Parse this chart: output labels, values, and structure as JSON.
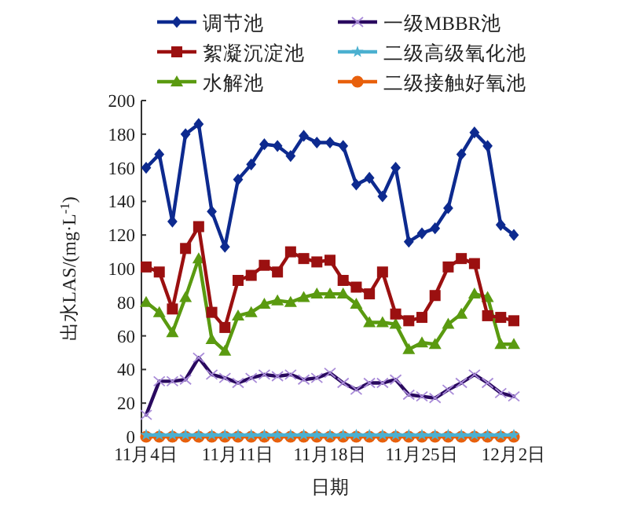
{
  "chart_data": {
    "type": "line",
    "xlabel": "日期",
    "ylabel": "出水LAS/(mg·L$^{-1}$)",
    "x": [
      "--11-04",
      "--11-05",
      "--11-06",
      "--11-07",
      "--11-08",
      "--11-09",
      "--11-10",
      "--11-11",
      "--11-12",
      "--11-13",
      "--11-14",
      "--11-15",
      "--11-16",
      "--11-17",
      "--11-18",
      "--11-19",
      "--11-20",
      "--11-21",
      "--11-22",
      "--11-23",
      "--11-24",
      "--11-25",
      "--11-26",
      "--11-27",
      "--11-28",
      "--11-29",
      "--11-30",
      "--12-01",
      "--12-02"
    ],
    "xlim": [
      "--11-04",
      "--12-02"
    ],
    "xticks": [
      {
        "value": "--11-04",
        "label": "11月4日"
      },
      {
        "value": "--11-11",
        "label": "11月11日"
      },
      {
        "value": "--11-18",
        "label": "11月18日"
      },
      {
        "value": "--11-25",
        "label": "11月25日"
      },
      {
        "value": "--12-02",
        "label": "12月2日"
      }
    ],
    "ylim": [
      0,
      200
    ],
    "yticks": [
      0,
      20,
      40,
      60,
      80,
      100,
      120,
      140,
      160,
      180,
      200
    ],
    "legend": "top",
    "grid": false,
    "series": [
      {
        "name": "调节池",
        "color": "#0d2a8f",
        "marker": "diamond",
        "values": [
          160,
          168,
          128,
          180,
          186,
          134,
          113,
          153,
          162,
          174,
          173,
          167,
          179,
          175,
          175,
          173,
          150,
          154,
          143,
          160,
          116,
          121,
          124,
          136,
          168,
          181,
          173,
          126,
          120
        ]
      },
      {
        "name": "絮凝沉淀池",
        "color": "#9b1010",
        "marker": "square",
        "values": [
          101,
          98,
          76,
          112,
          125,
          74,
          65,
          93,
          96,
          102,
          98,
          110,
          106,
          104,
          105,
          93,
          89,
          85,
          98,
          73,
          69,
          71,
          84,
          101,
          106,
          103,
          72,
          71,
          69
        ]
      },
      {
        "name": "水解池",
        "color": "#5a9a10",
        "marker": "triangle",
        "values": [
          80,
          74,
          62,
          83,
          106,
          58,
          51,
          72,
          74,
          79,
          81,
          80,
          83,
          85,
          85,
          85,
          79,
          68,
          68,
          67,
          52,
          56,
          55,
          67,
          73,
          85,
          83,
          55,
          55
        ]
      },
      {
        "name": "一级MBBR池",
        "color": "#2a0a5f",
        "marker": "cross",
        "values": [
          13,
          33,
          33,
          34,
          47,
          37,
          35,
          32,
          35,
          37,
          36,
          37,
          34,
          35,
          38,
          32,
          28,
          32,
          32,
          34,
          25,
          24,
          23,
          28,
          32,
          37,
          32,
          26,
          24
        ]
      },
      {
        "name": "二级高级氧化池",
        "color": "#4bb0d0",
        "marker": "star",
        "values": [
          1,
          1,
          1,
          1,
          1,
          1,
          1,
          1,
          1,
          1,
          1,
          1,
          1,
          1,
          1,
          1,
          1,
          1,
          1,
          1,
          1,
          1,
          1,
          1,
          1,
          1,
          1,
          1,
          1
        ]
      },
      {
        "name": "二级接触好氧池",
        "color": "#e8600c",
        "marker": "circle",
        "values": [
          0,
          0,
          0,
          0,
          0,
          0,
          0,
          0,
          0,
          0,
          0,
          0,
          0,
          0,
          0,
          0,
          0,
          0,
          0,
          0,
          0,
          0,
          0,
          0,
          0,
          0,
          0,
          0,
          0
        ]
      }
    ]
  }
}
